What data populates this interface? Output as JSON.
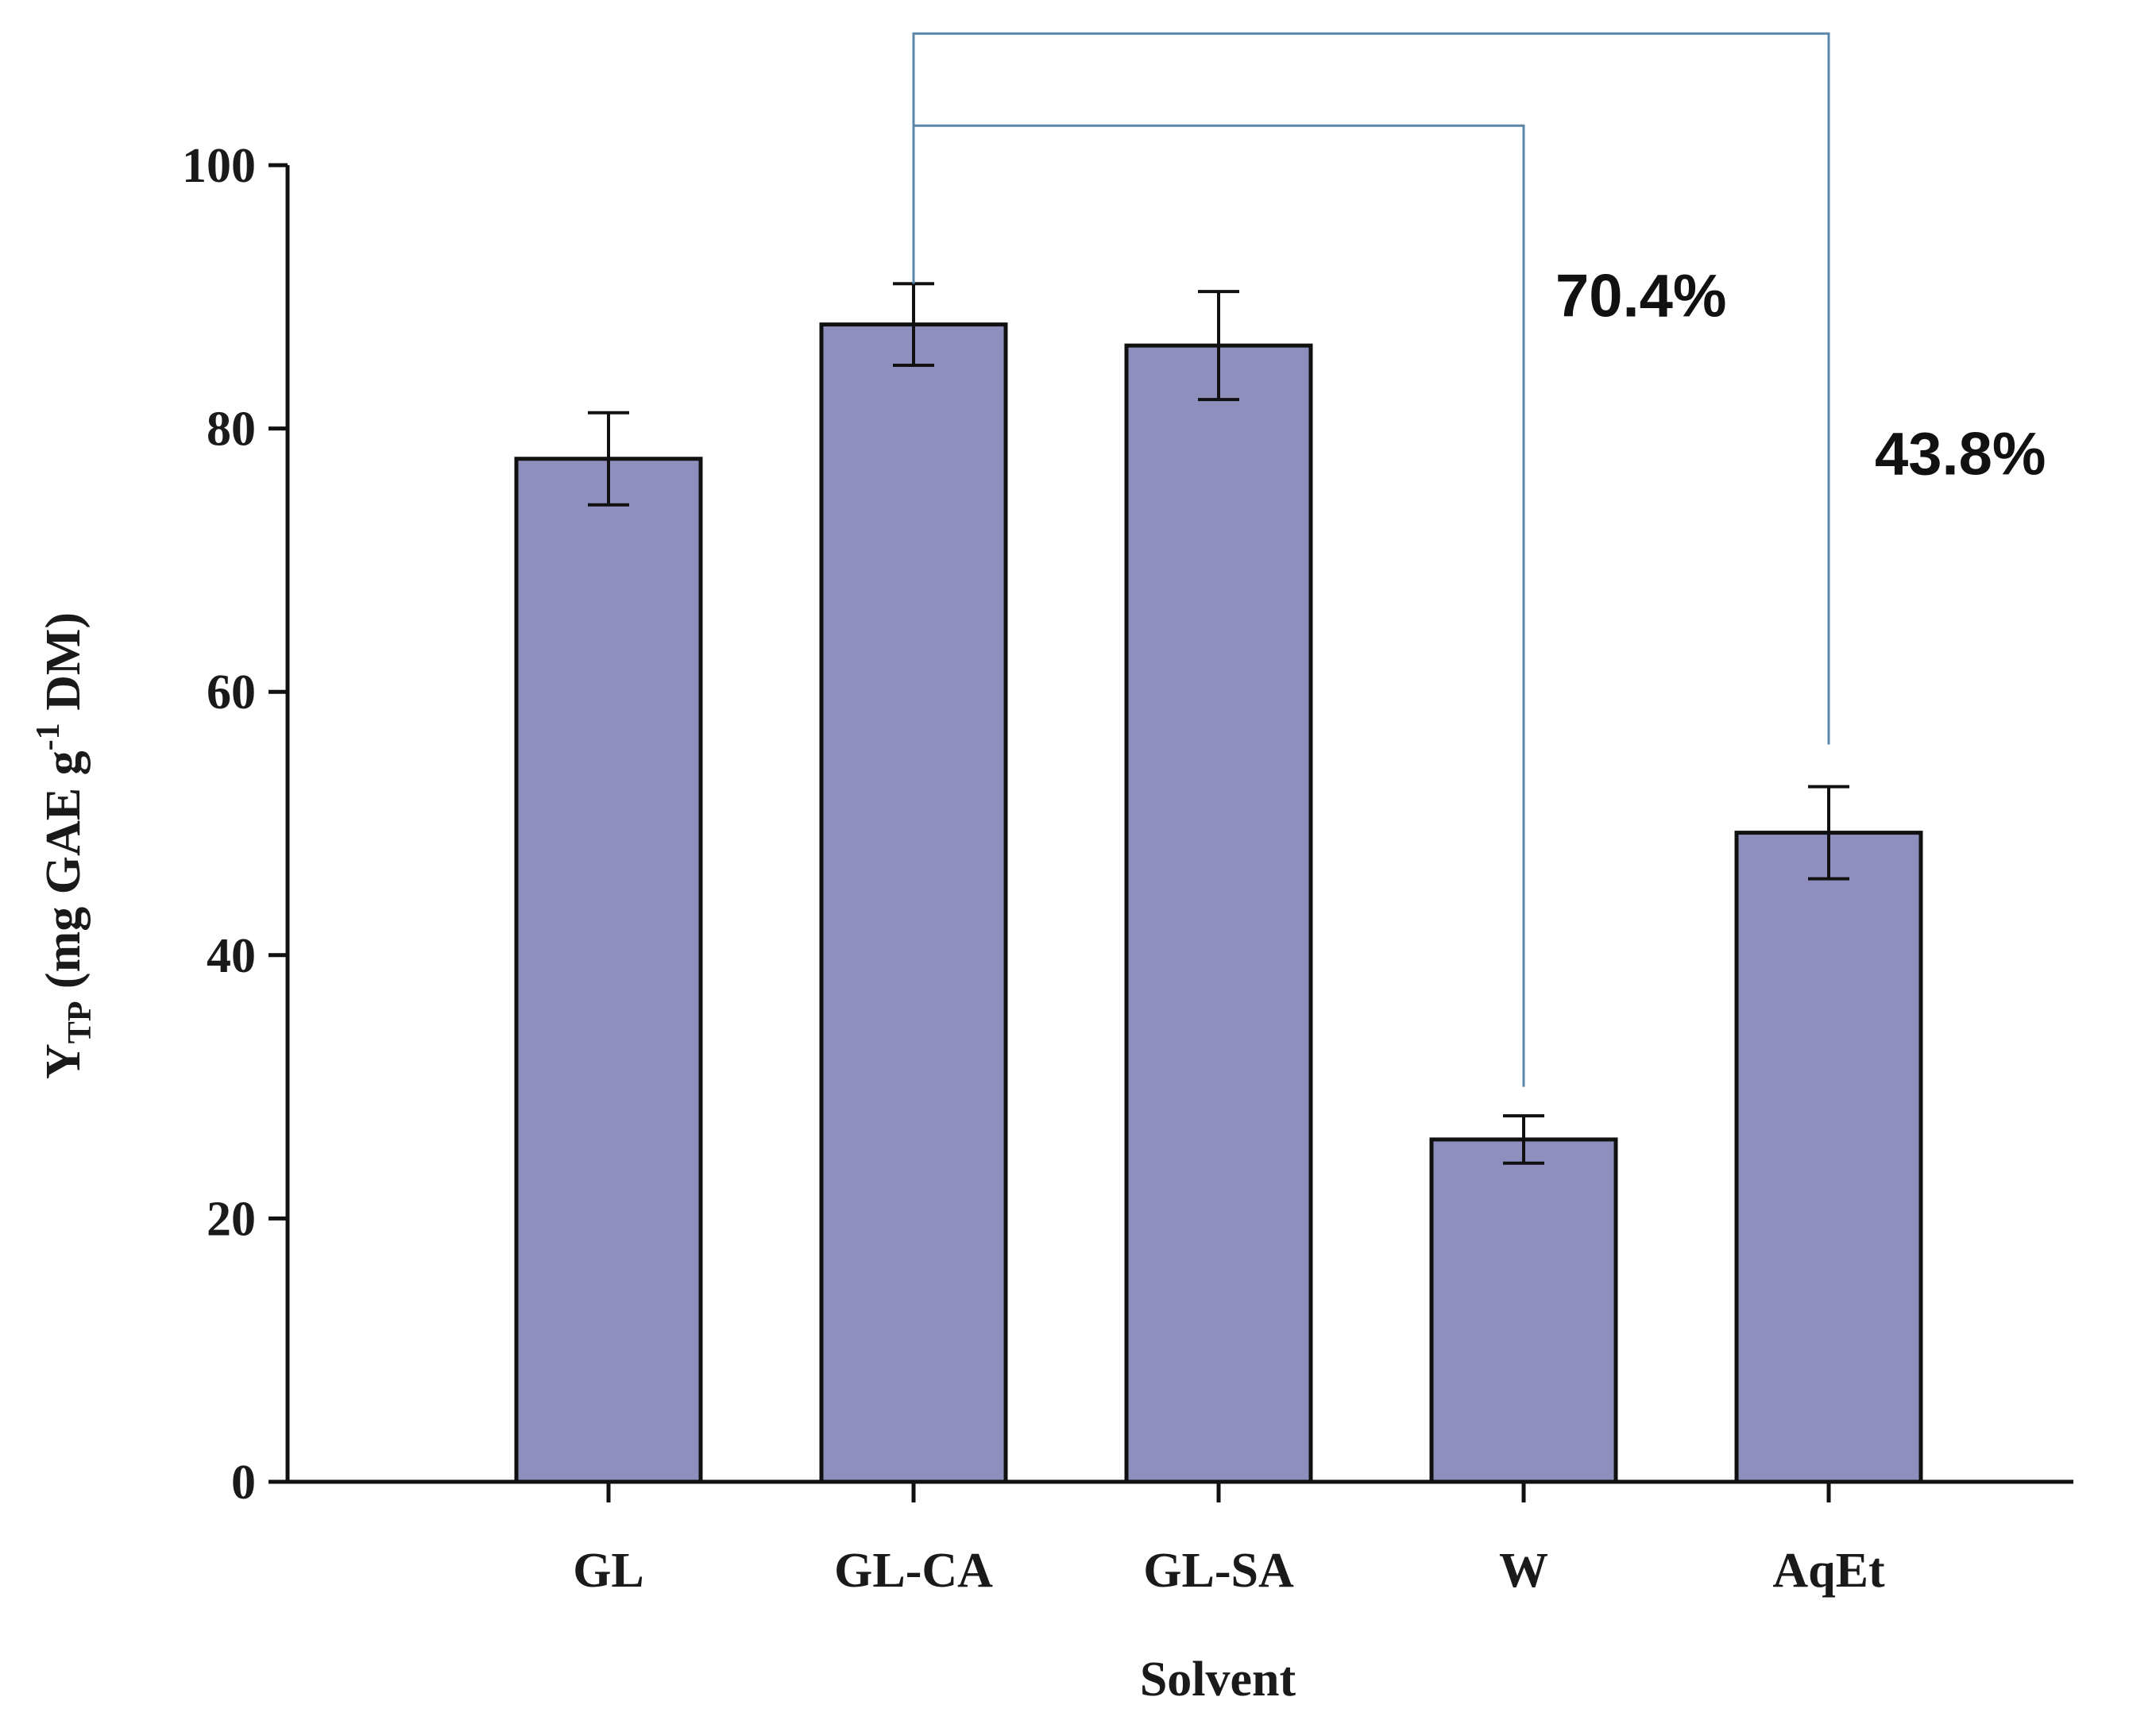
{
  "chart_data": {
    "type": "bar",
    "title": "",
    "xlabel": "Solvent",
    "ylabel": {
      "prefix": "Y",
      "sub": "TP",
      "mid": " (mg GAE g",
      "sup": "-1",
      "suffix": " DM)"
    },
    "categories": [
      "GL",
      "GL-CA",
      "GL-SA",
      "W",
      "AqEt"
    ],
    "values": [
      77.7,
      87.9,
      86.3,
      26.0,
      49.3
    ],
    "errors": [
      3.5,
      3.1,
      4.1,
      1.8,
      3.5
    ],
    "ylim": [
      0,
      100
    ],
    "yticks": [
      0,
      20,
      40,
      60,
      80,
      100
    ],
    "grid": false,
    "colors": {
      "bar": "#8f8fbd",
      "bar_edge": "#111111",
      "bracket": "#5b86a8",
      "axis": "#111111"
    },
    "annotations": [
      {
        "from": "GL-CA",
        "to": "W",
        "level": 103,
        "end": 30,
        "label": "70.4%"
      },
      {
        "from": "GL-CA",
        "to": "AqEt",
        "level": 110,
        "end": 56,
        "label": "43.8%"
      }
    ]
  }
}
